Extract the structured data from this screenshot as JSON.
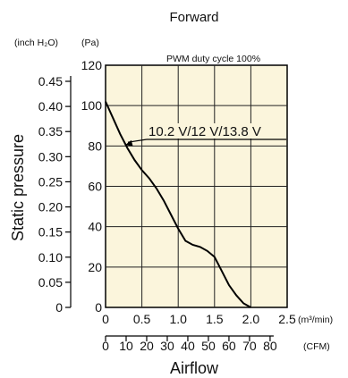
{
  "chart_data": {
    "type": "line",
    "title": "Forward",
    "annotation": "PWM duty cycle 100%",
    "series": [
      {
        "name": "10.2 V/12 V/13.8 V",
        "x": [
          0,
          0.1,
          0.2,
          0.3,
          0.4,
          0.5,
          0.6,
          0.7,
          0.8,
          0.9,
          1.0,
          1.1,
          1.2,
          1.3,
          1.4,
          1.5,
          1.6,
          1.7,
          1.8,
          1.9,
          2.0
        ],
        "y": [
          102,
          94,
          86,
          79,
          73,
          68,
          64,
          59,
          53,
          46,
          39,
          33,
          31,
          30,
          28,
          25,
          18,
          11,
          6,
          2,
          0
        ]
      }
    ],
    "xaxis": {
      "label": "Airflow",
      "unit": "(m³/min)",
      "range": [
        0,
        2.5
      ],
      "ticks": [
        0,
        0.5,
        1.0,
        1.5,
        2.0,
        2.5
      ],
      "tick_labels": [
        "0",
        "0.5",
        "1.0",
        "1.5",
        "2.0",
        "2.5"
      ]
    },
    "xaxis_secondary": {
      "unit": "(CFM)",
      "range": [
        0,
        88.3
      ],
      "ticks": [
        0,
        10,
        20,
        30,
        40,
        50,
        60,
        70,
        80
      ],
      "tick_labels": [
        "0",
        "10",
        "20",
        "30",
        "40",
        "50",
        "60",
        "70",
        "80"
      ]
    },
    "yaxis": {
      "label": "Static pressure",
      "unit": "(Pa)",
      "range": [
        0,
        120
      ],
      "ticks": [
        0,
        20,
        40,
        60,
        80,
        100,
        120
      ],
      "tick_labels": [
        "0",
        "20",
        "40",
        "60",
        "80",
        "100",
        "120"
      ]
    },
    "yaxis_secondary": {
      "unit": "(inch H₂O)",
      "range": [
        0,
        0.482
      ],
      "ticks": [
        0,
        0.05,
        0.1,
        0.15,
        0.2,
        0.25,
        0.3,
        0.35,
        0.4,
        0.45
      ],
      "tick_labels": [
        "0",
        "0.05",
        "0.10",
        "0.15",
        "0.20",
        "0.25",
        "0.30",
        "0.35",
        "0.40",
        "0.45"
      ]
    },
    "grid": true,
    "colors": {
      "plot_background": "#fbf5dc",
      "line": "#000000",
      "grid": "#222222"
    }
  }
}
